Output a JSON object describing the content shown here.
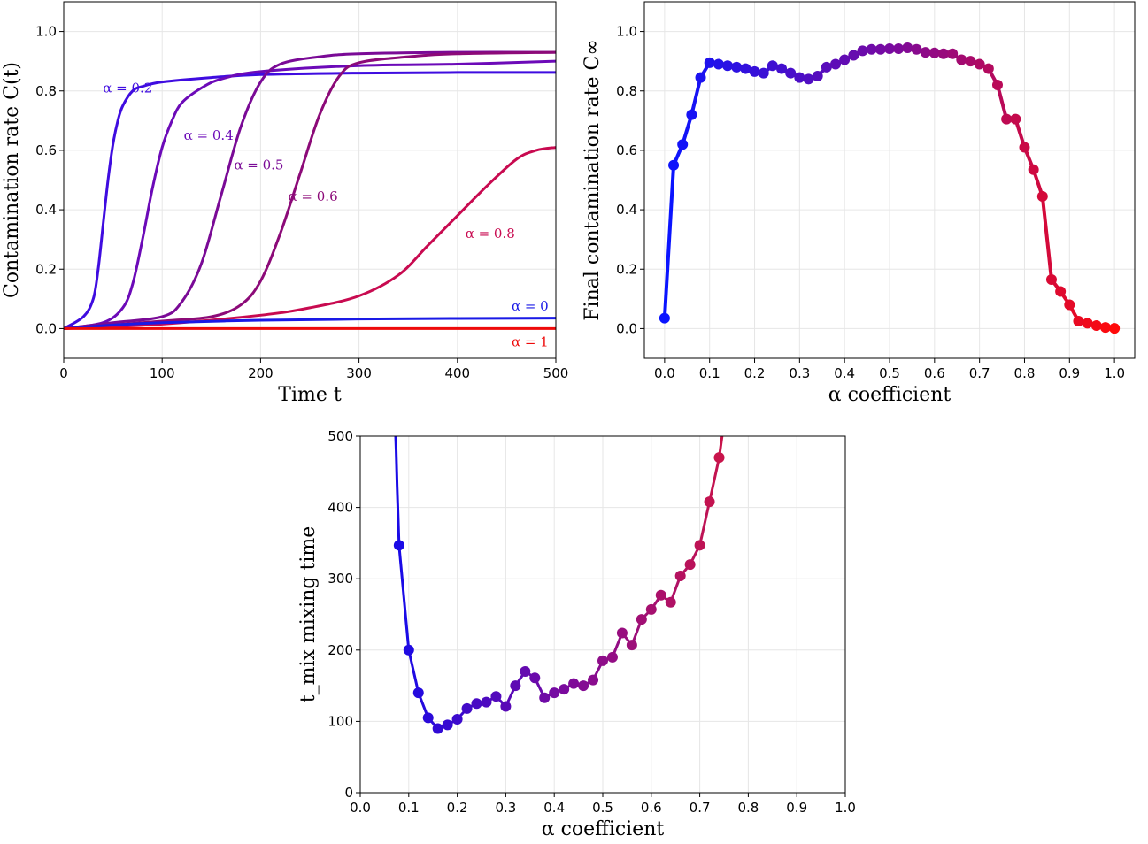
{
  "chart_data": [
    {
      "type": "line",
      "title": "",
      "xlabel": "Time t",
      "ylabel": "Contamination rate C(t)",
      "xlim": [
        0,
        500
      ],
      "ylim": [
        -0.1,
        1.1
      ],
      "x_ticks": [
        "0",
        "100",
        "200",
        "300",
        "400",
        "500"
      ],
      "y_ticks": [
        "0.0",
        "0.2",
        "0.4",
        "0.6",
        "0.8",
        "1.0"
      ],
      "grid": true,
      "series": [
        {
          "name": "α = 0.2",
          "color": "#3f0ce0",
          "x": [
            0,
            20,
            30,
            35,
            40,
            45,
            50,
            55,
            60,
            70,
            80,
            100,
            150,
            200,
            300,
            400,
            500
          ],
          "values": [
            0,
            0.04,
            0.1,
            0.2,
            0.35,
            0.5,
            0.62,
            0.7,
            0.75,
            0.8,
            0.815,
            0.83,
            0.845,
            0.855,
            0.86,
            0.862,
            0.862
          ]
        },
        {
          "name": "α = 0.4",
          "color": "#6c0ab8",
          "x": [
            0,
            40,
            60,
            70,
            80,
            90,
            100,
            110,
            120,
            140,
            160,
            200,
            300,
            400,
            500
          ],
          "values": [
            0,
            0.02,
            0.07,
            0.15,
            0.3,
            0.47,
            0.61,
            0.7,
            0.76,
            0.81,
            0.84,
            0.865,
            0.885,
            0.89,
            0.9
          ],
          "label_at": [
            122,
            0.65
          ]
        },
        {
          "name": "α = 0.5",
          "color": "#7a0a96",
          "x": [
            0,
            50,
            100,
            120,
            140,
            160,
            180,
            200,
            220,
            260,
            300,
            400,
            500
          ],
          "values": [
            0,
            0.02,
            0.04,
            0.09,
            0.22,
            0.45,
            0.68,
            0.83,
            0.89,
            0.915,
            0.925,
            0.93,
            0.93
          ],
          "label_at": [
            173,
            0.55
          ]
        },
        {
          "name": "α = 0.6",
          "color": "#8c0a78",
          "x": [
            0,
            100,
            150,
            180,
            200,
            220,
            240,
            260,
            280,
            300,
            350,
            400,
            500
          ],
          "values": [
            0,
            0.025,
            0.04,
            0.08,
            0.16,
            0.32,
            0.52,
            0.72,
            0.85,
            0.895,
            0.915,
            0.925,
            0.93
          ],
          "label_at": [
            228,
            0.445
          ]
        },
        {
          "name": "α = 0.8",
          "color": "#c80a50",
          "x": [
            0,
            100,
            200,
            250,
            300,
            340,
            370,
            400,
            430,
            460,
            480,
            500
          ],
          "values": [
            0,
            0.015,
            0.045,
            0.07,
            0.11,
            0.18,
            0.28,
            0.38,
            0.48,
            0.57,
            0.6,
            0.61
          ],
          "label_at": [
            408,
            0.32
          ]
        },
        {
          "name": "α = 0",
          "color": "#1a1ae6",
          "x": [
            0,
            50,
            100,
            200,
            300,
            400,
            500
          ],
          "values": [
            0,
            0.012,
            0.02,
            0.028,
            0.032,
            0.034,
            0.035
          ],
          "label_at": [
            455,
            0.075
          ]
        },
        {
          "name": "α = 1",
          "color": "#ee0a0a",
          "x": [
            0,
            500
          ],
          "values": [
            0,
            0
          ],
          "label_at": [
            455,
            -0.045
          ]
        }
      ],
      "annotations": [
        {
          "text": "α = 0.2",
          "x": 65,
          "y": 0.81,
          "color": "#3f0ce0"
        }
      ]
    },
    {
      "type": "line",
      "title": "",
      "xlabel": "α coefficient",
      "ylabel": "Final contamination rate C∞",
      "xlim": [
        -0.045,
        1.045
      ],
      "ylim": [
        -0.1,
        1.1
      ],
      "x_ticks": [
        "0.0",
        "0.1",
        "0.2",
        "0.3",
        "0.4",
        "0.5",
        "0.6",
        "0.7",
        "0.8",
        "0.9",
        "1.0"
      ],
      "y_ticks": [
        "0.0",
        "0.2",
        "0.4",
        "0.6",
        "0.8",
        "1.0"
      ],
      "grid": true,
      "markers": true,
      "color_start": "#0a14ff",
      "color_mid": "#780aa0",
      "color_end": "#ff0a0a",
      "x": [
        0.0,
        0.02,
        0.04,
        0.06,
        0.08,
        0.1,
        0.12,
        0.14,
        0.16,
        0.18,
        0.2,
        0.22,
        0.24,
        0.26,
        0.28,
        0.3,
        0.32,
        0.34,
        0.36,
        0.38,
        0.4,
        0.42,
        0.44,
        0.46,
        0.48,
        0.5,
        0.52,
        0.54,
        0.56,
        0.58,
        0.6,
        0.62,
        0.64,
        0.66,
        0.68,
        0.7,
        0.72,
        0.74,
        0.76,
        0.78,
        0.8,
        0.82,
        0.84,
        0.86,
        0.88,
        0.9,
        0.92,
        0.94,
        0.96,
        0.98,
        1.0
      ],
      "values": [
        0.035,
        0.55,
        0.62,
        0.72,
        0.845,
        0.895,
        0.89,
        0.885,
        0.88,
        0.875,
        0.865,
        0.86,
        0.885,
        0.875,
        0.86,
        0.845,
        0.84,
        0.85,
        0.88,
        0.89,
        0.905,
        0.92,
        0.935,
        0.94,
        0.94,
        0.942,
        0.942,
        0.945,
        0.94,
        0.93,
        0.928,
        0.925,
        0.925,
        0.905,
        0.9,
        0.89,
        0.875,
        0.82,
        0.705,
        0.705,
        0.61,
        0.535,
        0.445,
        0.165,
        0.125,
        0.08,
        0.025,
        0.018,
        0.01,
        0.004,
        0.001
      ]
    },
    {
      "type": "line",
      "title": "",
      "xlabel": "α coefficient",
      "ylabel": "t_mix mixing time",
      "xlim": [
        0.0,
        1.0
      ],
      "ylim": [
        0,
        500
      ],
      "x_ticks": [
        "0.0",
        "0.1",
        "0.2",
        "0.3",
        "0.4",
        "0.5",
        "0.6",
        "0.7",
        "0.8",
        "0.9",
        "1.0"
      ],
      "y_ticks": [
        "0",
        "100",
        "200",
        "300",
        "400",
        "500"
      ],
      "grid": true,
      "markers": true,
      "color_start": "#1a0ae6",
      "color_mid": "#780aa0",
      "color_end": "#c8144b",
      "curve_left": {
        "x": [
          0.072,
          0.074,
          0.076,
          0.078,
          0.08
        ],
        "values": [
          520,
          480,
          430,
          390,
          347
        ]
      },
      "curve_right": {
        "x": [
          0.74,
          0.745,
          0.75
        ],
        "values": [
          470,
          495,
          520
        ]
      },
      "x": [
        0.08,
        0.1,
        0.12,
        0.14,
        0.16,
        0.18,
        0.2,
        0.22,
        0.24,
        0.26,
        0.28,
        0.3,
        0.32,
        0.34,
        0.36,
        0.38,
        0.4,
        0.42,
        0.44,
        0.46,
        0.48,
        0.5,
        0.52,
        0.54,
        0.56,
        0.58,
        0.6,
        0.62,
        0.64,
        0.66,
        0.68,
        0.7,
        0.72,
        0.74
      ],
      "values": [
        347,
        200,
        140,
        105,
        90,
        95,
        103,
        118,
        125,
        127,
        135,
        121,
        150,
        170,
        161,
        133,
        140,
        145,
        153,
        150,
        158,
        185,
        190,
        224,
        207,
        243,
        257,
        277,
        267,
        304,
        320,
        347,
        408,
        470
      ]
    }
  ]
}
